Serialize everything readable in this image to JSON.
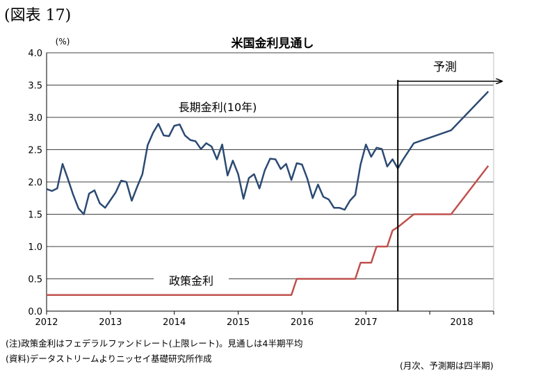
{
  "figure_label": "(図表 17)",
  "notes": {
    "note1": "(注)政策金利はフェデラルファンドレート(上限レート)。見通しは4半期平均",
    "note2": "(資料)データストリームよりニッセイ基礎研究所作成",
    "note3": "(月次、予測期は四半期)"
  },
  "chart_data": {
    "type": "line",
    "title": "米国金利見通し",
    "ylabel": "(%)",
    "ylim": [
      0,
      4.0
    ],
    "yticks": [
      "0.0",
      "0.5",
      "1.0",
      "1.5",
      "2.0",
      "2.5",
      "3.0",
      "3.5",
      "4.0"
    ],
    "xticks": [
      "2012",
      "2013",
      "2014",
      "2015",
      "2016",
      "2017",
      "2018"
    ],
    "xlim": [
      "2012-01",
      "2018-12"
    ],
    "grid": true,
    "annotations": {
      "forecast_label": "予測",
      "forecast_start": "2017-07"
    },
    "series": [
      {
        "name": "長期金利(10年)",
        "color": "#2b4a72",
        "points": [
          [
            "2012-01",
            1.89
          ],
          [
            "2012-02",
            1.86
          ],
          [
            "2012-03",
            1.9
          ],
          [
            "2012-04",
            2.28
          ],
          [
            "2012-05",
            2.05
          ],
          [
            "2012-06",
            1.8
          ],
          [
            "2012-07",
            1.59
          ],
          [
            "2012-08",
            1.5
          ],
          [
            "2012-09",
            1.82
          ],
          [
            "2012-10",
            1.87
          ],
          [
            "2012-11",
            1.67
          ],
          [
            "2012-12",
            1.6
          ],
          [
            "2013-01",
            1.72
          ],
          [
            "2013-02",
            1.84
          ],
          [
            "2013-03",
            2.02
          ],
          [
            "2013-04",
            2.0
          ],
          [
            "2013-05",
            1.71
          ],
          [
            "2013-06",
            1.92
          ],
          [
            "2013-07",
            2.12
          ],
          [
            "2013-08",
            2.57
          ],
          [
            "2013-09",
            2.76
          ],
          [
            "2013-10",
            2.9
          ],
          [
            "2013-11",
            2.72
          ],
          [
            "2013-12",
            2.71
          ],
          [
            "2014-01",
            2.87
          ],
          [
            "2014-02",
            2.89
          ],
          [
            "2014-03",
            2.72
          ],
          [
            "2014-04",
            2.65
          ],
          [
            "2014-05",
            2.63
          ],
          [
            "2014-06",
            2.51
          ],
          [
            "2014-07",
            2.6
          ],
          [
            "2014-08",
            2.55
          ],
          [
            "2014-09",
            2.35
          ],
          [
            "2014-10",
            2.58
          ],
          [
            "2014-11",
            2.1
          ],
          [
            "2014-12",
            2.33
          ],
          [
            "2015-01",
            2.12
          ],
          [
            "2015-02",
            1.74
          ],
          [
            "2015-03",
            2.06
          ],
          [
            "2015-04",
            2.12
          ],
          [
            "2015-05",
            1.9
          ],
          [
            "2015-06",
            2.18
          ],
          [
            "2015-07",
            2.36
          ],
          [
            "2015-08",
            2.35
          ],
          [
            "2015-09",
            2.2
          ],
          [
            "2015-10",
            2.28
          ],
          [
            "2015-11",
            2.03
          ],
          [
            "2015-12",
            2.29
          ],
          [
            "2016-01",
            2.27
          ],
          [
            "2016-02",
            2.05
          ],
          [
            "2016-03",
            1.75
          ],
          [
            "2016-04",
            1.96
          ],
          [
            "2016-05",
            1.77
          ],
          [
            "2016-06",
            1.73
          ],
          [
            "2016-07",
            1.6
          ],
          [
            "2016-08",
            1.6
          ],
          [
            "2016-09",
            1.57
          ],
          [
            "2016-10",
            1.71
          ],
          [
            "2016-11",
            1.8
          ],
          [
            "2016-12",
            2.27
          ],
          [
            "2017-01",
            2.58
          ],
          [
            "2017-02",
            2.39
          ],
          [
            "2017-03",
            2.53
          ],
          [
            "2017-04",
            2.51
          ],
          [
            "2017-05",
            2.24
          ],
          [
            "2017-06",
            2.35
          ],
          [
            "2017-07",
            2.21
          ],
          [
            "2017-08",
            2.35
          ],
          [
            "2017-10",
            2.6
          ],
          [
            "2018-05",
            2.8
          ],
          [
            "2018-12",
            3.4
          ]
        ]
      },
      {
        "name": "政策金利",
        "color": "#c0504d",
        "points": [
          [
            "2012-01",
            0.25
          ],
          [
            "2015-11",
            0.25
          ],
          [
            "2015-12",
            0.5
          ],
          [
            "2016-11",
            0.5
          ],
          [
            "2016-12",
            0.75
          ],
          [
            "2017-02",
            0.75
          ],
          [
            "2017-03",
            1.0
          ],
          [
            "2017-05",
            1.0
          ],
          [
            "2017-06",
            1.25
          ],
          [
            "2017-07",
            1.3
          ],
          [
            "2017-10",
            1.5
          ],
          [
            "2018-05",
            1.5
          ],
          [
            "2018-12",
            2.25
          ]
        ]
      }
    ]
  }
}
